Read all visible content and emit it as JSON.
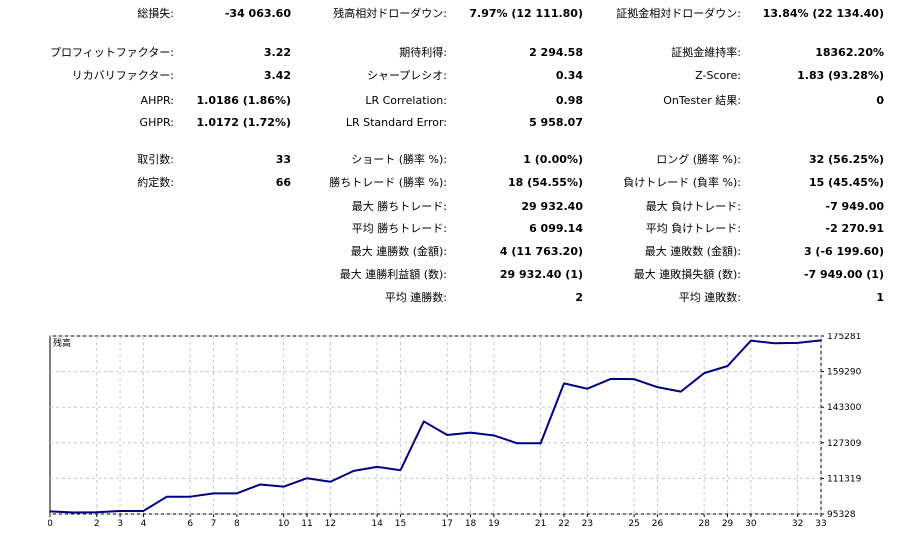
{
  "rows": [
    {
      "c1": {
        "label": "総損失:",
        "value": "-34 063.60"
      },
      "c2": {
        "label": "残高相対ドローダウン:",
        "value": "7.97% (12 111.80)"
      },
      "c3": {
        "label": "証拠金相対ドローダウン:",
        "value": "13.84% (22 134.40)"
      }
    },
    {
      "c1": {
        "label": "プロフィットファクター:",
        "value": "3.22"
      },
      "c2": {
        "label": "期待利得:",
        "value": "2 294.58"
      },
      "c3": {
        "label": "証拠金維持率:",
        "value": "18362.20%"
      }
    },
    {
      "c1": {
        "label": "リカバリファクター:",
        "value": "3.42"
      },
      "c2": {
        "label": "シャープレシオ:",
        "value": "0.34"
      },
      "c3": {
        "label": "Z-Score:",
        "value": "1.83 (93.28%)"
      }
    },
    {
      "c1": {
        "label": "AHPR:",
        "value": "1.0186 (1.86%)"
      },
      "c2": {
        "label": "LR Correlation:",
        "value": "0.98"
      },
      "c3": {
        "label": "OnTester 結果:",
        "value": "0"
      }
    },
    {
      "c1": {
        "label": "GHPR:",
        "value": "1.0172 (1.72%)"
      },
      "c2": {
        "label": "LR Standard Error:",
        "value": "5 958.07"
      },
      "c3": null
    },
    {
      "c1": {
        "label": "取引数:",
        "value": "33"
      },
      "c2": {
        "label": "ショート (勝率 %):",
        "value": "1 (0.00%)"
      },
      "c3": {
        "label": "ロング (勝率 %):",
        "value": "32 (56.25%)"
      }
    },
    {
      "c1": {
        "label": "約定数:",
        "value": "66"
      },
      "c2": {
        "label": "勝ちトレード (勝率 %):",
        "value": "18 (54.55%)"
      },
      "c3": {
        "label": "負けトレード (負率 %):",
        "value": "15 (45.45%)"
      }
    },
    {
      "c1": null,
      "c2": {
        "label": "最大 勝ちトレード:",
        "value": "29 932.40"
      },
      "c3": {
        "label": "最大 負けトレード:",
        "value": "-7 949.00"
      }
    },
    {
      "c1": null,
      "c2": {
        "label": "平均 勝ちトレード:",
        "value": "6 099.14"
      },
      "c3": {
        "label": "平均 負けトレード:",
        "value": "-2 270.91"
      }
    },
    {
      "c1": null,
      "c2": {
        "label": "最大 連勝数 (金額):",
        "value": "4 (11 763.20)"
      },
      "c3": {
        "label": "最大 連敗数 (金額):",
        "value": "3 (-6 199.60)"
      }
    },
    {
      "c1": null,
      "c2": {
        "label": "最大 連勝利益額 (数):",
        "value": "29 932.40 (1)"
      },
      "c3": {
        "label": "最大 連敗損失額 (数):",
        "value": "-7 949.00 (1)"
      }
    },
    {
      "c1": null,
      "c2": {
        "label": "平均 連勝数:",
        "value": "2"
      },
      "c3": {
        "label": "平均 連敗数:",
        "value": "1"
      }
    }
  ],
  "chart_data": {
    "type": "line",
    "title": "残高",
    "color": "#000080",
    "x_ticks": [
      "0",
      "2",
      "3",
      "4",
      "6",
      "7",
      "8",
      "10",
      "11",
      "12",
      "14",
      "15",
      "17",
      "18",
      "19",
      "21",
      "22",
      "23",
      "25",
      "26",
      "28",
      "29",
      "30",
      "32",
      "33"
    ],
    "y_ticks": [
      95328,
      111319,
      127309,
      143300,
      159290,
      175281
    ],
    "ylim": [
      95328,
      175281
    ],
    "xlim": [
      0,
      33
    ],
    "grid": true,
    "x": [
      0,
      1,
      2,
      3,
      4,
      5,
      6,
      7,
      8,
      9,
      10,
      11,
      12,
      13,
      14,
      15,
      16,
      17,
      18,
      19,
      20,
      21,
      22,
      23,
      24,
      25,
      26,
      27,
      28,
      29,
      30,
      31,
      32,
      33
    ],
    "y": [
      96500,
      96000,
      96100,
      96700,
      96700,
      103100,
      103100,
      104600,
      104600,
      108600,
      107600,
      111400,
      109800,
      114700,
      116500,
      115000,
      136900,
      130800,
      131900,
      130600,
      127100,
      127100,
      154000,
      151600,
      156000,
      155900,
      152300,
      150300,
      158600,
      161800,
      173200,
      172000,
      172200,
      173300
    ]
  }
}
